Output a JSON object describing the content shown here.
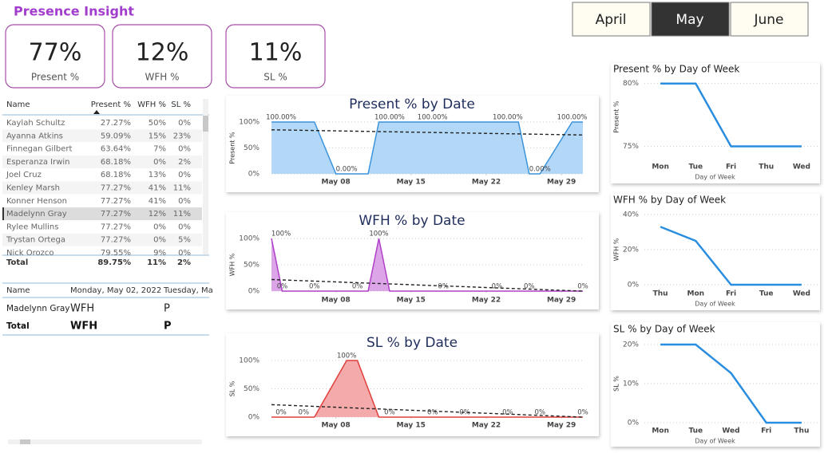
{
  "title": "Presence Insight",
  "cards": [
    {
      "value": "77%",
      "label": "Present %"
    },
    {
      "value": "12%",
      "label": "WFH %"
    },
    {
      "value": "11%",
      "label": "SL %"
    }
  ],
  "slicer": {
    "options": [
      "April",
      "May",
      "June"
    ],
    "selected": 1
  },
  "table": {
    "columns": [
      "Name",
      "Present %",
      "WFH %",
      "SL %"
    ],
    "rows": [
      [
        "Kaylah Schultz",
        "27.27%",
        "50%",
        "0%"
      ],
      [
        "Ayanna Atkins",
        "59.09%",
        "15%",
        "23%"
      ],
      [
        "Finnegan Gilbert",
        "63.64%",
        "7%",
        "0%"
      ],
      [
        "Esperanza Irwin",
        "68.18%",
        "0%",
        "2%"
      ],
      [
        "Joel Cruz",
        "68.18%",
        "13%",
        "0%"
      ],
      [
        "Kenley Marsh",
        "77.27%",
        "41%",
        "11%"
      ],
      [
        "Konner Henson",
        "77.27%",
        "41%",
        "0%"
      ],
      [
        "Madelynn Gray",
        "77.27%",
        "12%",
        "11%"
      ],
      [
        "Rylee Mullins",
        "77.27%",
        "0%",
        "0%"
      ],
      [
        "Trystan Ortega",
        "77.27%",
        "0%",
        "5%"
      ],
      [
        "Nick Orozco",
        "79.55%",
        "9%",
        "0%"
      ]
    ],
    "total": [
      "Total",
      "89.75%",
      "11%",
      "2%"
    ],
    "selected_row": 7
  },
  "matrix": {
    "columns": [
      "Name",
      "Monday, May 02, 2022",
      "Tuesday, Ma"
    ],
    "rows": [
      [
        "Madelynn Gray",
        "WFH",
        "P"
      ]
    ],
    "total": [
      "Total",
      "WFH",
      "P"
    ]
  },
  "chart_data": [
    {
      "type": "area",
      "title": "Present % by Date",
      "y_label": "Present %",
      "color": "#3b94dc",
      "fill": "#b3d7f7",
      "x": [
        2,
        6,
        8,
        9,
        11,
        12,
        13,
        17,
        24,
        25,
        26,
        27,
        30,
        31
      ],
      "values": [
        100,
        100,
        0,
        0,
        0,
        100,
        100,
        100,
        100,
        100,
        0,
        0,
        100,
        100
      ],
      "value_labels": [
        "100.00%",
        null,
        null,
        "0.00%",
        null,
        null,
        "100.00%",
        "100.00%",
        "100.00%",
        null,
        null,
        "0.00%",
        "100.00%",
        null
      ],
      "trend": [
        85,
        75
      ],
      "xlim": [
        2,
        31
      ],
      "xticks": [
        {
          "value": 8,
          "label": "May 08"
        },
        {
          "value": 15,
          "label": "May 15"
        },
        {
          "value": 22,
          "label": "May 22"
        },
        {
          "value": 29,
          "label": "May 29"
        }
      ],
      "ylim": [
        0,
        100
      ],
      "yticks": [
        {
          "value": 0,
          "label": "0%"
        },
        {
          "value": 50,
          "label": "50%"
        },
        {
          "value": 100,
          "label": "100%"
        }
      ],
      "grid": true
    },
    {
      "type": "area",
      "title": "WFH % by Date",
      "y_label": "WFH %",
      "color": "#b03fc9",
      "fill": "#dba5e8",
      "x": [
        2,
        3,
        6,
        10,
        11,
        12,
        13,
        18,
        23,
        26,
        31
      ],
      "values": [
        100,
        0,
        0,
        0,
        0,
        100,
        0,
        0,
        0,
        0,
        0
      ],
      "value_labels": [
        "100%",
        "0%",
        "0%",
        "0%",
        null,
        "100%",
        null,
        "0%",
        "0%",
        "0%",
        "0%"
      ],
      "trend": [
        22,
        0
      ],
      "xlim": [
        2,
        31
      ],
      "xticks": [
        {
          "value": 8,
          "label": "May 08"
        },
        {
          "value": 15,
          "label": "May 15"
        },
        {
          "value": 22,
          "label": "May 22"
        },
        {
          "value": 29,
          "label": "May 29"
        }
      ],
      "ylim": [
        0,
        100
      ],
      "yticks": [
        {
          "value": 0,
          "label": "0%"
        },
        {
          "value": 50,
          "label": "50%"
        },
        {
          "value": 100,
          "label": "100%"
        }
      ],
      "grid": true
    },
    {
      "type": "area",
      "title": "SL % by Date",
      "y_label": "SL %",
      "color": "#e0403c",
      "fill": "#f4aaaa",
      "x": [
        2,
        5,
        6,
        9,
        10,
        12,
        13,
        17,
        20,
        24,
        27,
        31
      ],
      "values": [
        0,
        0,
        0,
        100,
        100,
        0,
        0,
        0,
        0,
        0,
        0,
        0
      ],
      "value_labels": [
        "0%",
        "0%",
        null,
        "100%",
        null,
        null,
        "0%",
        "0%",
        "0%",
        "0%",
        "0%",
        "0%"
      ],
      "trend": [
        22,
        0
      ],
      "xlim": [
        2,
        31
      ],
      "xticks": [
        {
          "value": 8,
          "label": "May 08"
        },
        {
          "value": 15,
          "label": "May 15"
        },
        {
          "value": 22,
          "label": "May 22"
        },
        {
          "value": 29,
          "label": "May 29"
        }
      ],
      "ylim": [
        0,
        100
      ],
      "yticks": [
        {
          "value": 0,
          "label": "0%"
        },
        {
          "value": 50,
          "label": "50%"
        },
        {
          "value": 100,
          "label": "100%"
        }
      ],
      "grid": true
    },
    {
      "type": "line",
      "title": "Present % by Day of Week",
      "y_label": "Present %",
      "x_label": "Day of Week",
      "color": "#2a8ee0",
      "categories": [
        "Mon",
        "Tue",
        "Fri",
        "Thu",
        "Wed"
      ],
      "values": [
        80,
        80,
        75,
        75,
        75
      ],
      "ylim": [
        74.4,
        80.3
      ],
      "yticks": [
        {
          "value": 75,
          "label": "75%"
        },
        {
          "value": 80,
          "label": "80%"
        }
      ],
      "grid": true
    },
    {
      "type": "line",
      "title": "WFH % by Day of Week",
      "y_label": "WFH %",
      "x_label": "Day of Week",
      "color": "#2a8ee0",
      "categories": [
        "Thu",
        "Mon",
        "Fri",
        "Tue",
        "Wed"
      ],
      "values": [
        33,
        25,
        0,
        0,
        0
      ],
      "ylim": [
        0,
        40
      ],
      "yticks": [
        {
          "value": 0,
          "label": "0%"
        },
        {
          "value": 20,
          "label": "20%"
        },
        {
          "value": 40,
          "label": "40%"
        }
      ],
      "grid": true
    },
    {
      "type": "line",
      "title": "SL % by Day of Week",
      "y_label": "SL %",
      "x_label": "Day of Week",
      "color": "#2a8ee0",
      "categories": [
        "Mon",
        "Tue",
        "Wed",
        "Fri",
        "Thu"
      ],
      "values": [
        20,
        20,
        12.7,
        0,
        0
      ],
      "ylim": [
        0,
        20
      ],
      "yticks": [
        {
          "value": 0,
          "label": "0%"
        },
        {
          "value": 10,
          "label": "10%"
        },
        {
          "value": 20,
          "label": "20%"
        }
      ],
      "grid": true
    }
  ]
}
